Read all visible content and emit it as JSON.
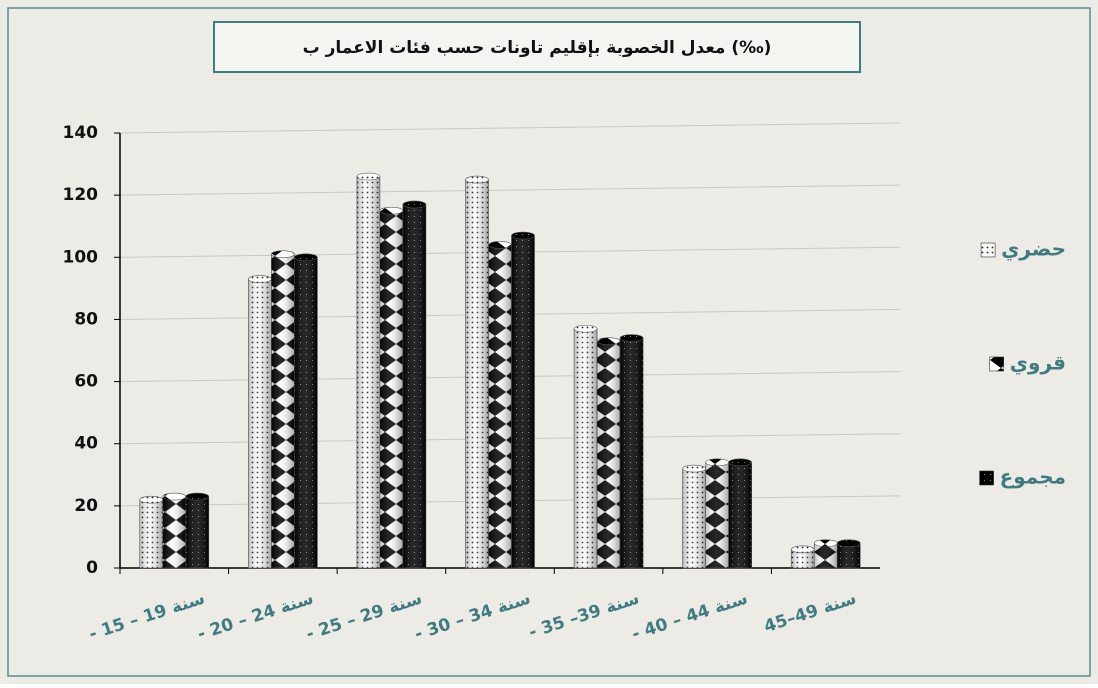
{
  "chart_data": {
    "type": "bar",
    "title": "معدل الخصوبة بإقليم تاونات حسب فئات الاعمار ب (‰)",
    "categories": [
      "- 15 – 19 سنة",
      "- 20 – 24 سنة",
      "- 25 – 29 سنة",
      "- 30 – 34 سنة",
      "- 35 –39 سنة",
      "- 40 – 44 سنة",
      "45–49 سنة"
    ],
    "series": [
      {
        "name": "حضري",
        "color": "dots",
        "values": [
          22,
          93,
          126,
          125,
          77,
          32,
          6
        ]
      },
      {
        "name": "قروي",
        "color": "diamonds",
        "values": [
          23,
          101,
          115,
          104,
          73,
          34,
          8
        ]
      },
      {
        "name": "مجموع",
        "color": "checker",
        "values": [
          23,
          100,
          117,
          107,
          74,
          34,
          8
        ]
      }
    ],
    "ylim": [
      0,
      140
    ],
    "yticks": [
      0,
      20,
      40,
      60,
      80,
      100,
      120,
      140
    ],
    "grid": true,
    "legend": "right"
  }
}
